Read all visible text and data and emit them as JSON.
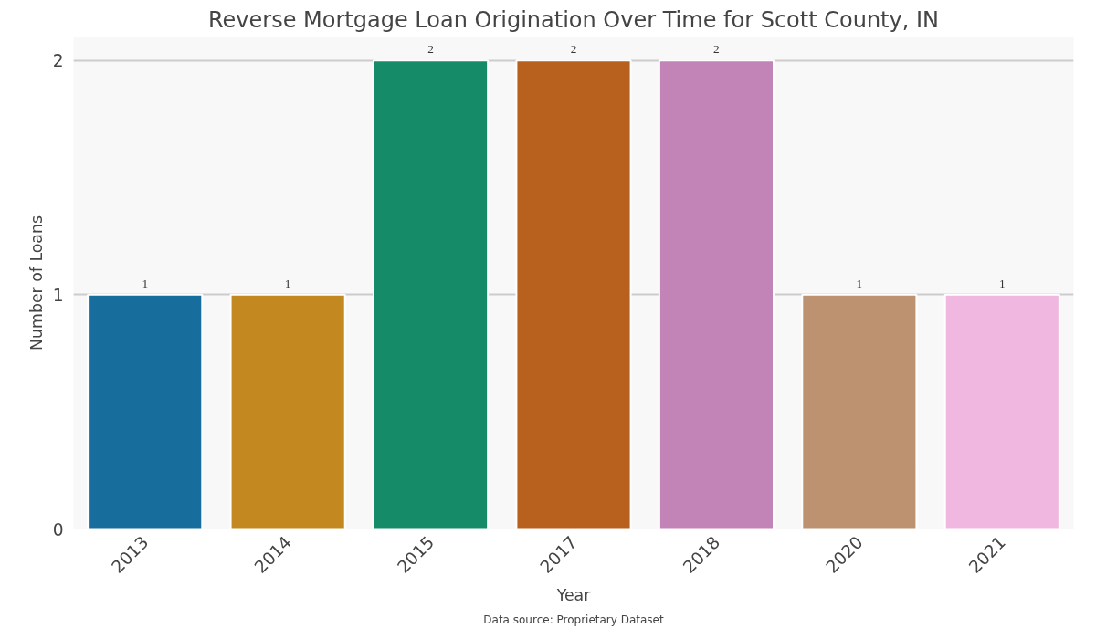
{
  "chart_data": {
    "type": "bar",
    "title": "Reverse Mortgage Loan Origination Over Time for Scott County, IN",
    "xlabel": "Year",
    "ylabel": "Number of Loans",
    "categories": [
      "2013",
      "2014",
      "2015",
      "2017",
      "2018",
      "2020",
      "2021"
    ],
    "values": [
      1,
      1,
      2,
      2,
      2,
      1,
      1
    ],
    "colors": [
      "#176d9c",
      "#c38820",
      "#168b68",
      "#b8611e",
      "#c283b6",
      "#bc9270",
      "#f0b8e0"
    ],
    "ylim": [
      0,
      2
    ],
    "yticks": [
      0,
      1,
      2
    ],
    "grid": "y",
    "data_labels": true,
    "annotations": [
      "Data source: Proprietary Dataset"
    ]
  }
}
